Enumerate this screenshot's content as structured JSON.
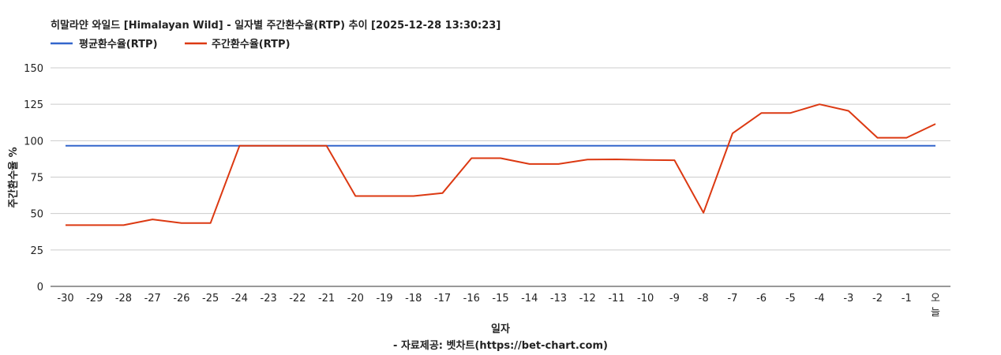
{
  "chart_data": {
    "type": "line",
    "title": "히말라얀 와일드 [Himalayan Wild] - 일자별 주간환수율(RTP) 추이 [2025-12-28 13:30:23]",
    "xlabel": "일자",
    "ylabel": "주간환수율 %",
    "footer": "- 자료제공: 벳차트(https://bet-chart.com)",
    "ylim": [
      0,
      150
    ],
    "yticks": [
      "0",
      "25",
      "50",
      "75",
      "100",
      "125",
      "150"
    ],
    "grid": true,
    "legend_position": "top-left",
    "categories": [
      "-30",
      "-29",
      "-28",
      "-27",
      "-26",
      "-25",
      "-24",
      "-23",
      "-22",
      "-21",
      "-20",
      "-19",
      "-18",
      "-17",
      "-16",
      "-15",
      "-14",
      "-13",
      "-12",
      "-11",
      "-10",
      "-9",
      "-8",
      "-7",
      "-6",
      "-5",
      "-4",
      "-3",
      "-2",
      "-1",
      "오늘"
    ],
    "series": [
      {
        "name": "평균환수율(RTP)",
        "color": "#3366cc",
        "values": [
          96.5,
          96.5,
          96.5,
          96.5,
          96.5,
          96.5,
          96.5,
          96.5,
          96.5,
          96.5,
          96.5,
          96.5,
          96.5,
          96.5,
          96.5,
          96.5,
          96.5,
          96.5,
          96.5,
          96.5,
          96.5,
          96.5,
          96.5,
          96.5,
          96.5,
          96.5,
          96.5,
          96.5,
          96.5,
          96.5,
          96.5
        ]
      },
      {
        "name": "주간환수율(RTP)",
        "color": "#dc3912",
        "values": [
          42,
          42,
          42,
          46,
          43.5,
          43.5,
          96.5,
          96.5,
          96.5,
          96.5,
          62,
          62,
          62,
          64,
          88,
          88,
          84,
          84,
          87,
          87.2,
          86.8,
          86.6,
          50.5,
          105,
          119,
          119,
          125,
          120.5,
          102,
          102,
          111.5
        ]
      }
    ]
  }
}
